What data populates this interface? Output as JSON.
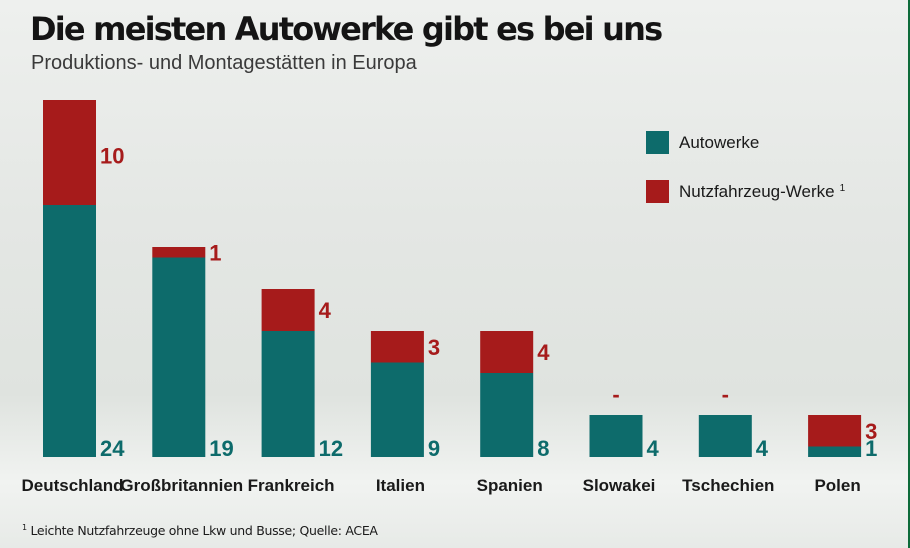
{
  "title": "Die meisten Autowerke gibt es bei uns",
  "subtitle": "Produktions- und Montagestätten in Europa",
  "footnote": {
    "marker": "1",
    "text": "Leichte Nutzfahrzeuge ohne Lkw und Busse; Quelle: ACEA"
  },
  "colors": {
    "autowerke": "#0d6b6b",
    "nutzfahrzeug": "#a61b1b",
    "text": "#1a1a1a"
  },
  "chart_data": {
    "type": "bar",
    "stacked": true,
    "categories": [
      "Deutschland",
      "Großbritannien",
      "Frankreich",
      "Italien",
      "Spanien",
      "Slowakei",
      "Tschechien",
      "Polen"
    ],
    "series": [
      {
        "name": "Autowerke",
        "values": [
          24,
          19,
          12,
          9,
          8,
          4,
          4,
          1
        ],
        "labels": [
          "24",
          "19",
          "12",
          "9",
          "8",
          "4",
          "4",
          "1"
        ]
      },
      {
        "name": "Nutzfahrzeug-Werke",
        "marker": "1",
        "values": [
          10,
          1,
          4,
          3,
          4,
          0,
          0,
          3
        ],
        "labels": [
          "10",
          "1",
          "4",
          "3",
          "4",
          "-",
          "-",
          "3"
        ]
      }
    ],
    "ylim": [
      0,
      34
    ],
    "legend": "top-right",
    "grid": false
  }
}
